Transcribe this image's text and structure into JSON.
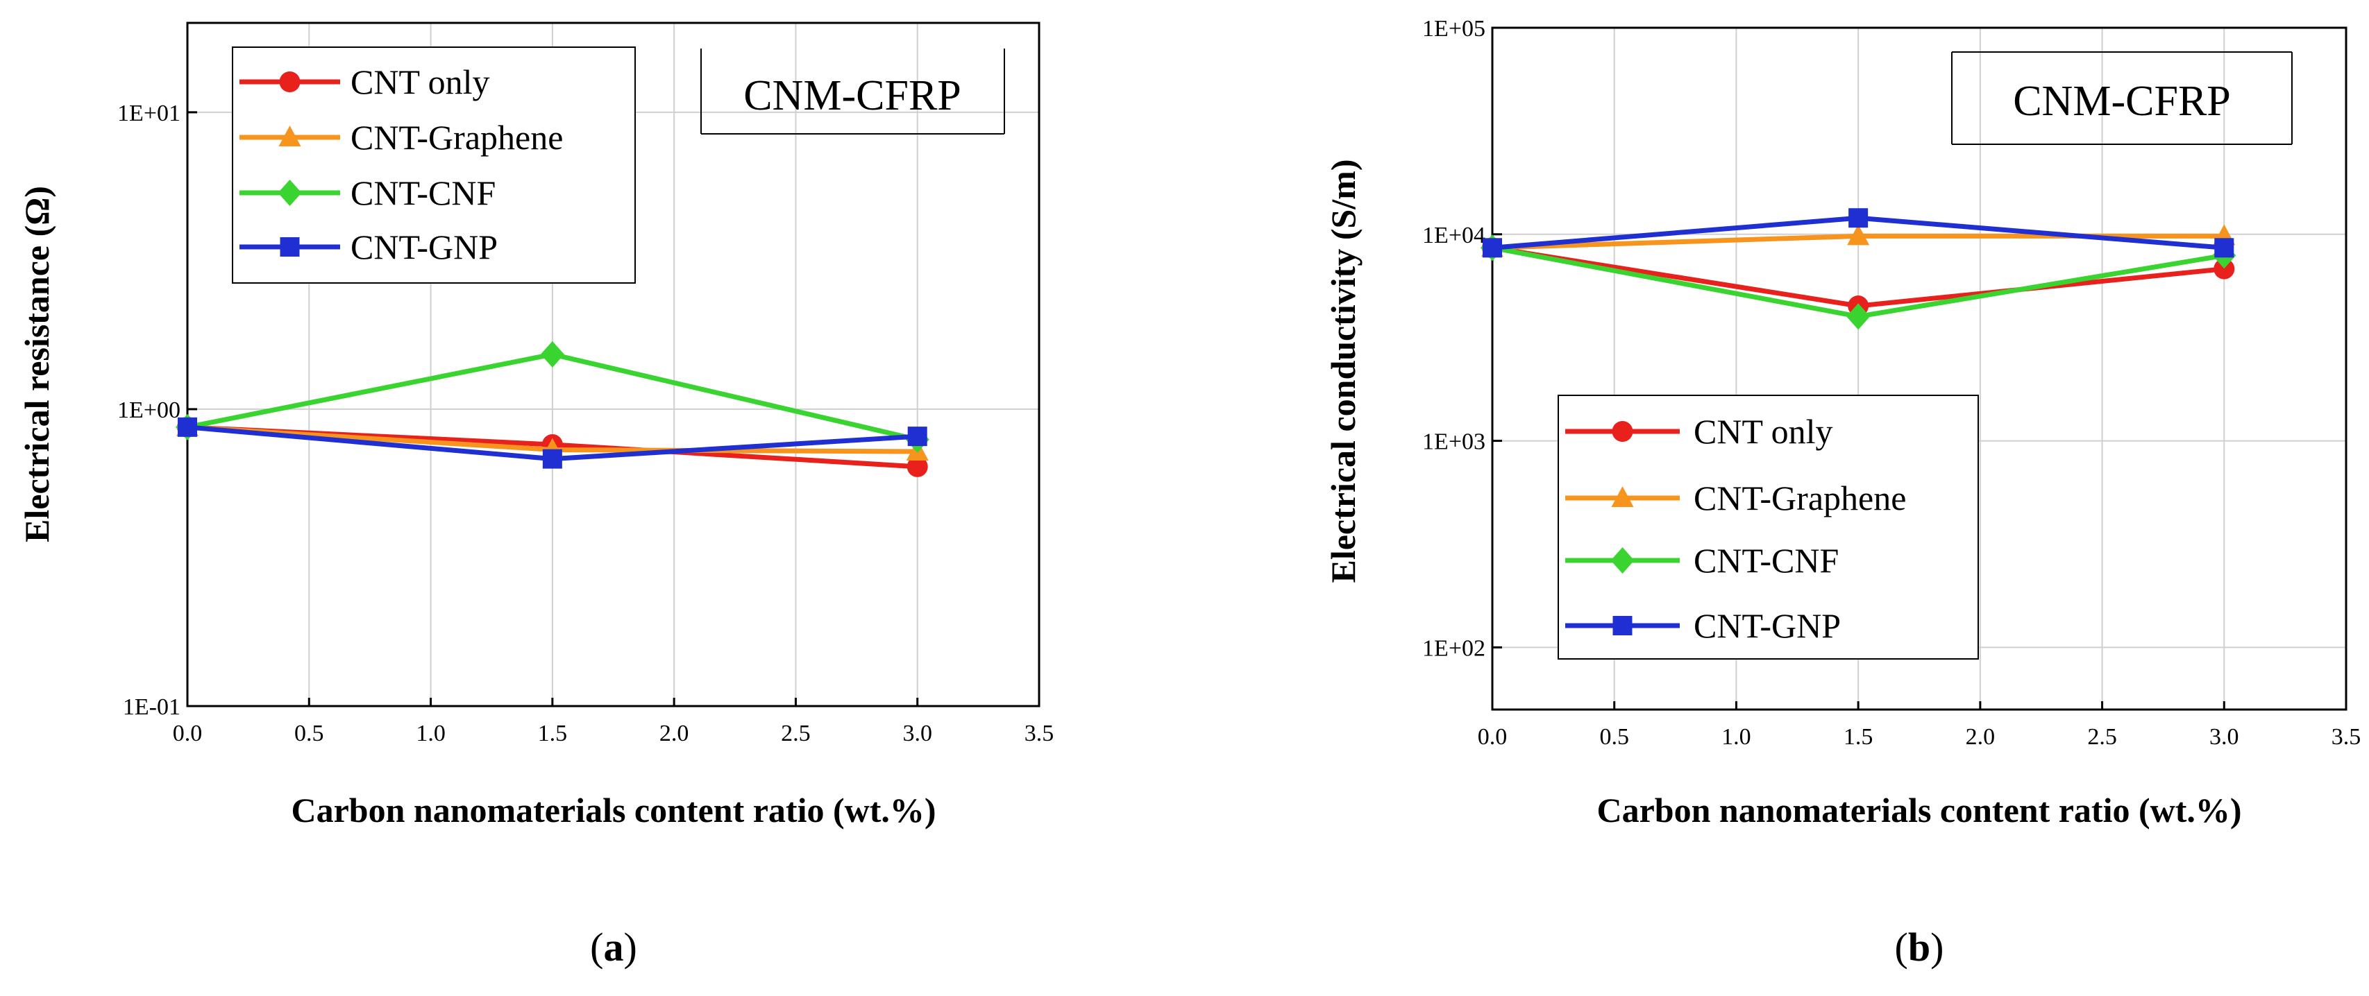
{
  "chart_data": [
    {
      "type": "line",
      "panel_label": "a",
      "annotation": "CNM-CFRP",
      "xlabel": "Carbon nanomaterials content ratio (wt.%)",
      "ylabel": "Electrical resistance (Ω)",
      "xlim": [
        0,
        3.5
      ],
      "ylim": [
        0.1,
        20
      ],
      "yscale": "log",
      "grid": true,
      "legend_position": "top-left",
      "x_ticks": [
        0,
        0.5,
        1,
        1.5,
        2,
        2.5,
        3,
        3.5
      ],
      "x_tick_labels": [
        "0.0",
        "0.5",
        "1.0",
        "1.5",
        "2.0",
        "2.5",
        "3.0",
        "3.5"
      ],
      "y_ticks": [
        0.1,
        1,
        10
      ],
      "y_tick_labels": [
        "1E-01",
        "1E+00",
        "1E+01"
      ],
      "x": [
        0,
        1.5,
        3.0
      ],
      "series": [
        {
          "name": "CNT only",
          "color": "#e8211c",
          "marker": "circle",
          "values": [
            0.87,
            0.76,
            0.64
          ]
        },
        {
          "name": "CNT-Graphene",
          "color": "#f7941d",
          "marker": "triangle",
          "values": [
            0.87,
            0.73,
            0.72
          ]
        },
        {
          "name": "CNT-CNF",
          "color": "#39d42f",
          "marker": "diamond",
          "values": [
            0.87,
            1.53,
            0.79
          ]
        },
        {
          "name": "CNT-GNP",
          "color": "#1f2fd1",
          "marker": "square",
          "values": [
            0.87,
            0.68,
            0.81
          ]
        }
      ]
    },
    {
      "type": "line",
      "panel_label": "b",
      "annotation": "CNM-CFRP",
      "xlabel": "Carbon nanomaterials content ratio (wt.%)",
      "ylabel": "Electrical conductivity (S/m)",
      "xlim": [
        0,
        3.5
      ],
      "ylim": [
        50,
        100000
      ],
      "yscale": "log",
      "grid": true,
      "legend_position": "bottom-left",
      "x_ticks": [
        0,
        0.5,
        1,
        1.5,
        2,
        2.5,
        3,
        3.5
      ],
      "x_tick_labels": [
        "0.0",
        "0.5",
        "1.0",
        "1.5",
        "2.0",
        "2.5",
        "3.0",
        "3.5"
      ],
      "y_ticks": [
        100,
        1000,
        10000,
        100000
      ],
      "y_tick_labels": [
        "1E+02",
        "1E+03",
        "1E+04",
        "1E+05"
      ],
      "x": [
        0,
        1.5,
        3.0
      ],
      "series": [
        {
          "name": "CNT only",
          "color": "#e8211c",
          "marker": "circle",
          "values": [
            8600,
            4500,
            6800
          ]
        },
        {
          "name": "CNT-Graphene",
          "color": "#f7941d",
          "marker": "triangle",
          "values": [
            8600,
            9800,
            9800
          ]
        },
        {
          "name": "CNT-CNF",
          "color": "#39d42f",
          "marker": "diamond",
          "values": [
            8600,
            4000,
            7900
          ]
        },
        {
          "name": "CNT-GNP",
          "color": "#1f2fd1",
          "marker": "square",
          "values": [
            8600,
            12000,
            8600
          ]
        }
      ]
    }
  ]
}
